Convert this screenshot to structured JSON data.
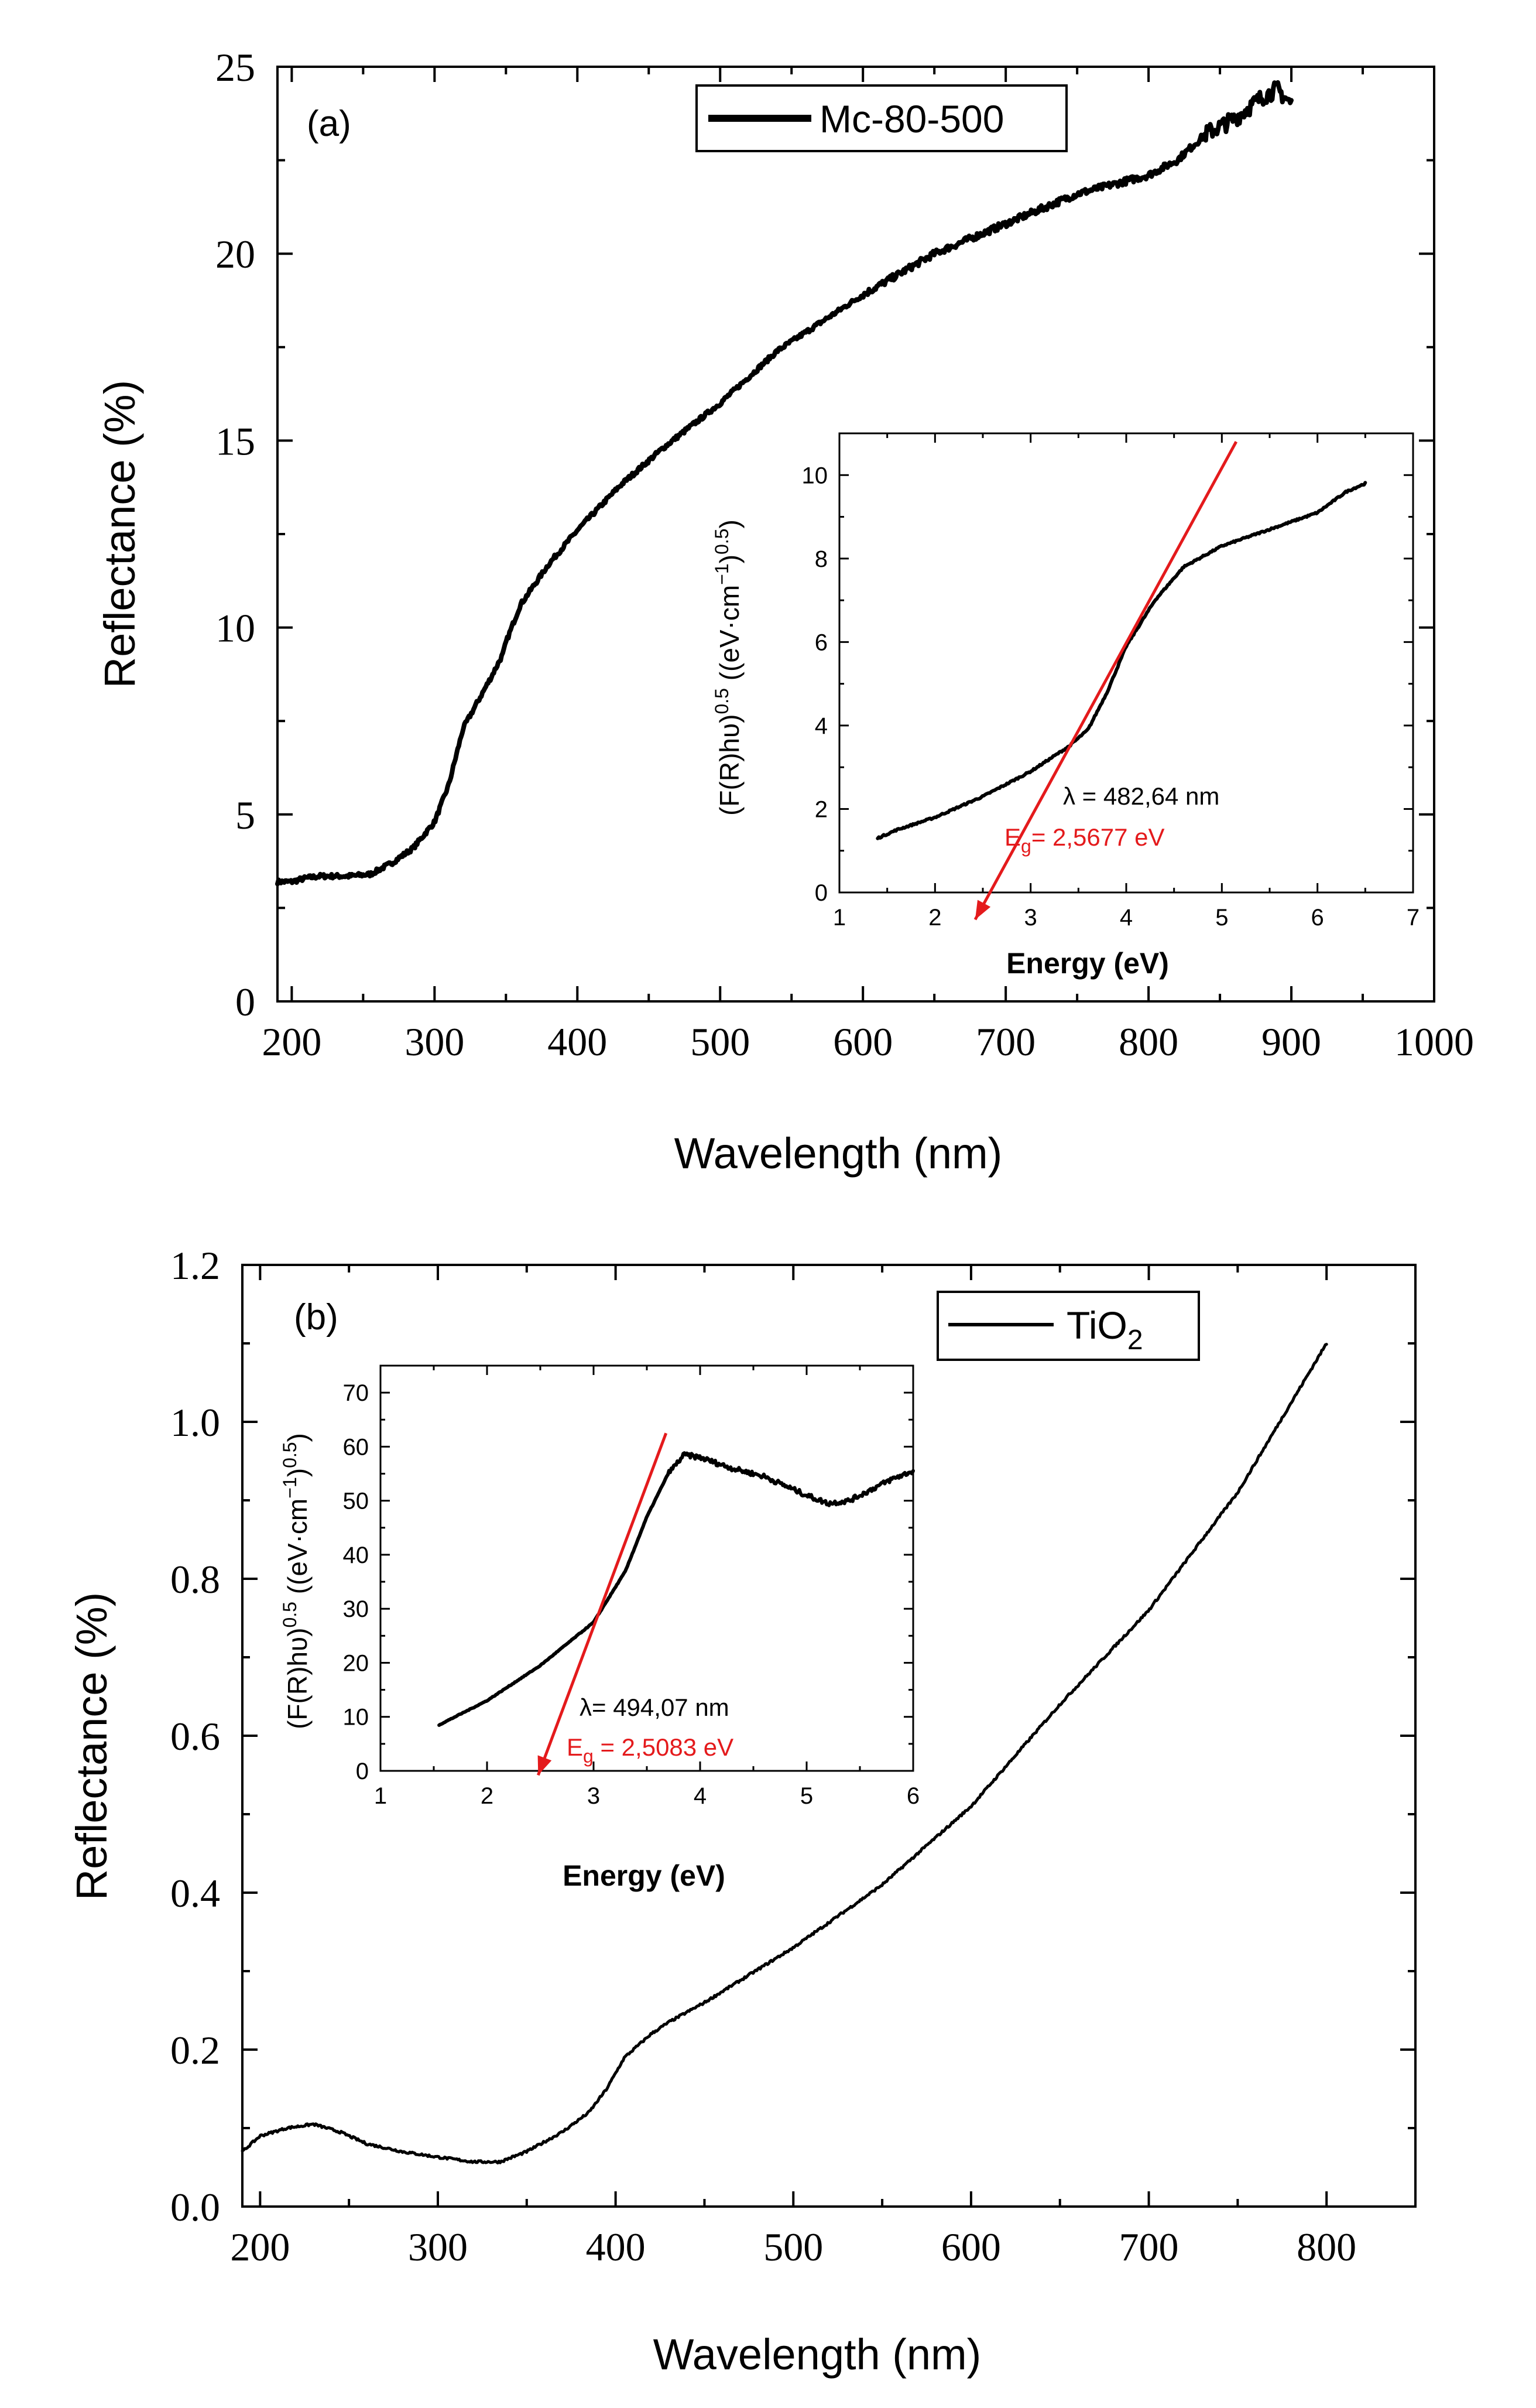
{
  "chart_data": [
    {
      "type": "line",
      "panel_label": "(a)",
      "xlabel": "Wavelength (nm)",
      "ylabel": "Reflectance (%)",
      "xlim": [
        190,
        1000
      ],
      "ylim": [
        0,
        25
      ],
      "xticks": [
        200,
        300,
        400,
        500,
        600,
        700,
        800,
        900,
        1000
      ],
      "yticks": [
        0,
        5,
        10,
        15,
        20,
        25
      ],
      "legend": "Mc-80-500",
      "color": "#000000",
      "series": [
        {
          "name": "Mc-80-500",
          "x": [
            190,
            200,
            210,
            220,
            240,
            255,
            270,
            285,
            300,
            310,
            320,
            330,
            340,
            348,
            350,
            360,
            380,
            400,
            430,
            460,
            500,
            540,
            560,
            600,
            650,
            700,
            750,
            800,
            820,
            840,
            860,
            880,
            890,
            900
          ],
          "y": [
            3.2,
            3.2,
            3.3,
            3.35,
            3.35,
            3.4,
            3.7,
            4.1,
            4.8,
            5.8,
            7.3,
            8.0,
            8.7,
            9.3,
            9.6,
            10.6,
            11.7,
            12.6,
            13.8,
            14.8,
            16.0,
            17.4,
            17.9,
            18.9,
            20.0,
            20.8,
            21.6,
            22.1,
            22.5,
            23.2,
            23.6,
            24.2,
            24.4,
            24.0
          ]
        }
      ],
      "inset": {
        "xlabel": "Energy (eV)",
        "ylabel": "(F(R)hυ)^0.5 ((eV·cm^-1)^0.5)",
        "ylabel_main": "(F(R)hυ)",
        "ylabel_exp1": "0.5",
        "ylabel_mid": " ((eV·cm",
        "ylabel_exp2": "−1",
        "ylabel_end": ")",
        "ylabel_exp3": "0.5",
        "ylabel_close": ")",
        "xlim": [
          1,
          7
        ],
        "ylim": [
          0,
          11
        ],
        "xticks": [
          1,
          2,
          3,
          4,
          5,
          6,
          7
        ],
        "yticks": [
          0,
          2,
          4,
          6,
          8,
          10
        ],
        "curve": {
          "x": [
            1.4,
            1.6,
            2.0,
            2.5,
            3.0,
            3.4,
            3.6,
            3.8,
            4.0,
            4.3,
            4.6,
            5.0,
            5.5,
            6.0,
            6.3,
            6.5
          ],
          "y": [
            1.3,
            1.5,
            1.8,
            2.3,
            2.9,
            3.5,
            3.9,
            4.8,
            5.9,
            7.0,
            7.8,
            8.3,
            8.7,
            9.1,
            9.6,
            9.8
          ]
        },
        "fit_line": {
          "x": [
            5.15,
            2.42
          ],
          "y": [
            10.8,
            -0.65
          ],
          "color": "#e41a1c"
        },
        "lambda_text": "λ = 482,64 nm",
        "eg_prefix": "E",
        "eg_sub": "g",
        "eg_value": "= 2,5677 eV"
      }
    },
    {
      "type": "line",
      "panel_label": "(b)",
      "xlabel": "Wavelength (nm)",
      "ylabel": "Reflectance (%)",
      "xlim": [
        190,
        850
      ],
      "ylim": [
        0,
        1.2
      ],
      "xticks": [
        200,
        300,
        400,
        500,
        600,
        700,
        800
      ],
      "yticks": [
        "0.0",
        "0.2",
        "0.4",
        "0.6",
        "0.8",
        "1.0",
        "1.2"
      ],
      "legend": "TiO",
      "legend_sub": "2",
      "color": "#000000",
      "series": [
        {
          "name": "TiO2",
          "x": [
            190,
            200,
            215,
            230,
            245,
            260,
            280,
            300,
            320,
            335,
            350,
            370,
            385,
            395,
            400,
            405,
            410,
            420,
            430,
            450,
            500,
            550,
            600,
            650,
            700,
            750,
            800
          ],
          "y": [
            0.07,
            0.09,
            0.1,
            0.105,
            0.095,
            0.08,
            0.07,
            0.063,
            0.057,
            0.057,
            0.07,
            0.095,
            0.12,
            0.15,
            0.17,
            0.19,
            0.2,
            0.22,
            0.235,
            0.26,
            0.33,
            0.41,
            0.51,
            0.64,
            0.76,
            0.91,
            1.1
          ]
        }
      ],
      "inset": {
        "xlabel": "Energy (eV)",
        "ylabel": "(F(R)hυ)^0.5 ((eV·cm^-1)^0.5)",
        "ylabel_main": "(F(R)hυ)",
        "ylabel_exp1": "0.5",
        "ylabel_mid": " ((eV·cm",
        "ylabel_exp2": "−1",
        "ylabel_end": ")",
        "ylabel_exp3": "0.5",
        "ylabel_close": ")",
        "xlim": [
          1,
          6
        ],
        "ylim": [
          0,
          75
        ],
        "xticks": [
          1,
          2,
          3,
          4,
          5,
          6
        ],
        "yticks": [
          0,
          10,
          20,
          30,
          40,
          50,
          60,
          70
        ],
        "curve": {
          "x": [
            1.55,
            2.0,
            2.5,
            3.0,
            3.3,
            3.5,
            3.7,
            3.85,
            4.0,
            4.3,
            4.6,
            5.0,
            5.2,
            5.4,
            5.6,
            5.8,
            6.0
          ],
          "y": [
            8.5,
            13.0,
            19.5,
            27.5,
            37.0,
            47.0,
            55.0,
            58.5,
            58.0,
            56.0,
            54.5,
            51.0,
            49.5,
            50.0,
            52.0,
            54.0,
            55.5
          ]
        },
        "fit_line": {
          "x": [
            3.68,
            2.48
          ],
          "y": [
            62.5,
            -0.8
          ],
          "color": "#e41a1c"
        },
        "lambda_text": "λ= 494,07 nm",
        "eg_prefix": "E",
        "eg_sub": "g",
        "eg_value": " = 2,5083 eV"
      }
    }
  ]
}
